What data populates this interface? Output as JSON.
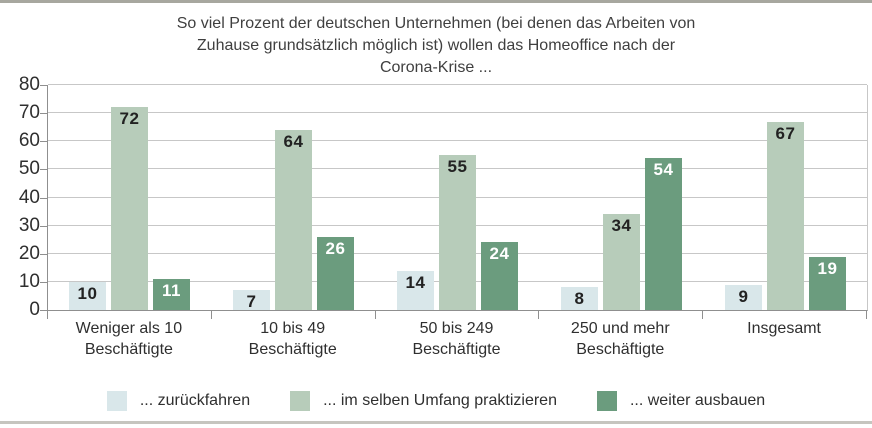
{
  "page": {
    "top_bar_color": "#a7a79f",
    "bottom_bar_color": "#c6c5bf",
    "background": "#ffffff"
  },
  "title_lines": [
    "So viel Prozent der deutschen Unternehmen (bei denen das Arbeiten von",
    "Zuhause grundsätzlich möglich ist) wollen das Homeoffice nach der",
    "Corona-Krise ..."
  ],
  "chart_data": {
    "type": "bar",
    "title": "So viel Prozent der deutschen Unternehmen (bei denen das Arbeiten von Zuhause grundsätzlich möglich ist) wollen das Homeoffice nach der Corona-Krise ...",
    "categories": [
      "Weniger als 10 Beschäftigte",
      "10 bis 49 Beschäftigte",
      "50 bis 249 Beschäftigte",
      "250 und mehr Beschäftigte",
      "Insgesamt"
    ],
    "series": [
      {
        "name": "... zurückfahren",
        "color": "#d9e7ea",
        "value_label_color": "#222222",
        "values": [
          10,
          7,
          14,
          8,
          9
        ]
      },
      {
        "name": "... im selben Umfang praktizieren",
        "color": "#b7ccba",
        "value_label_color": "#222222",
        "values": [
          72,
          64,
          55,
          34,
          67
        ]
      },
      {
        "name": "... weiter ausbauen",
        "color": "#6b9c7e",
        "value_label_color": "#ffffff",
        "values": [
          11,
          26,
          24,
          54,
          19
        ]
      }
    ],
    "ylim": [
      0,
      80
    ],
    "yticks": [
      0,
      10,
      20,
      30,
      40,
      50,
      60,
      70,
      80
    ],
    "grid": true,
    "legend_position": "bottom",
    "unit": "Prozent"
  }
}
